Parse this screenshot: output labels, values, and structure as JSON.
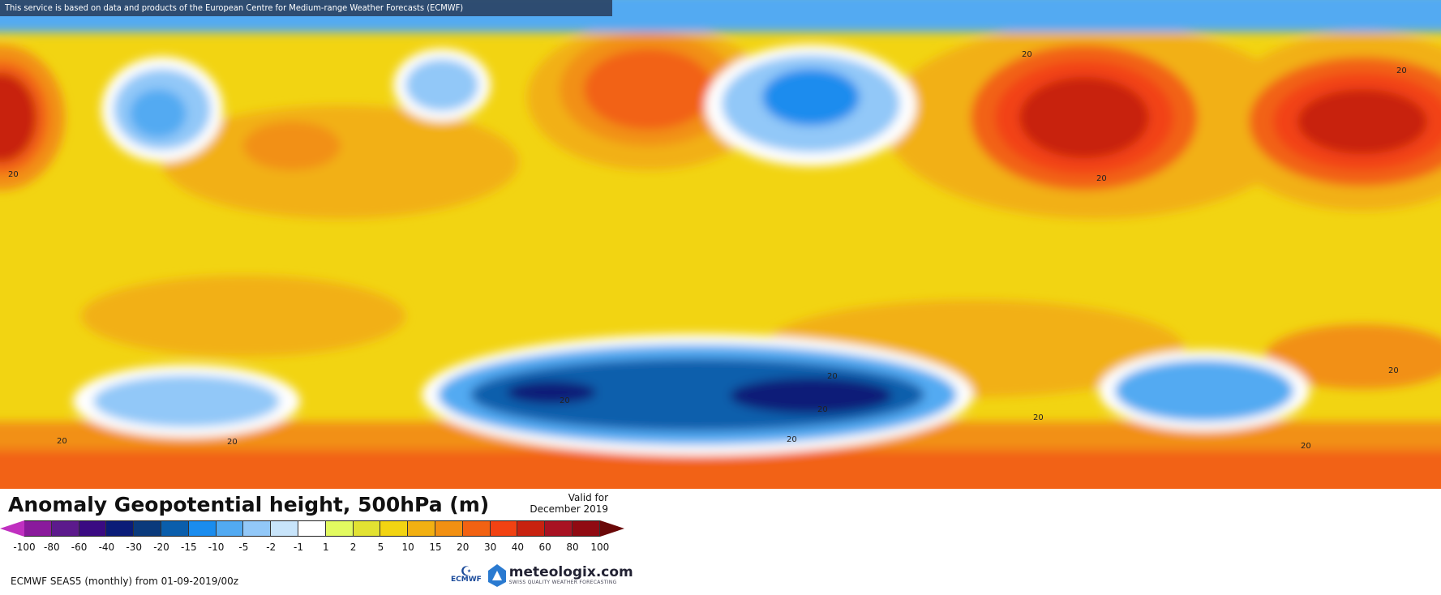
{
  "credit_banner": "This service is based on data and products of the European Centre for Medium-range Weather Forecasts (ECMWF)",
  "title": "Anomaly Geopotential height, 500hPa (m)",
  "valid": {
    "line1": "Valid for",
    "line2": "December 2019"
  },
  "footer": "ECMWF SEAS5 (monthly) from 01-09-2019/00z",
  "contour_label": "20",
  "legend": {
    "low_arrow_color": "#c030c0",
    "high_arrow_color": "#6a0808",
    "colors": [
      "#8a1a9c",
      "#5c1a8c",
      "#3a0a82",
      "#0a1c78",
      "#0a3a7c",
      "#0a5eac",
      "#1a8cee",
      "#52aaf2",
      "#92c8f8",
      "#c8e4fa",
      "#ffffff",
      "#e2fa60",
      "#e2e232",
      "#f2d412",
      "#f2b012",
      "#f29012",
      "#f26212",
      "#f24212",
      "#c82210",
      "#a81222",
      "#900a12"
    ],
    "ticks": [
      "-100",
      "-80",
      "-60",
      "-40",
      "-30",
      "-20",
      "-15",
      "-10",
      "-5",
      "-2",
      "-1",
      "1",
      "2",
      "5",
      "10",
      "15",
      "20",
      "30",
      "40",
      "60",
      "80",
      "100"
    ]
  },
  "logos": {
    "ecmwf": "ECMWF",
    "meteologix": "meteologix.com",
    "meteologix_tagline": "SWISS QUALITY WEATHER FORECASTING"
  }
}
